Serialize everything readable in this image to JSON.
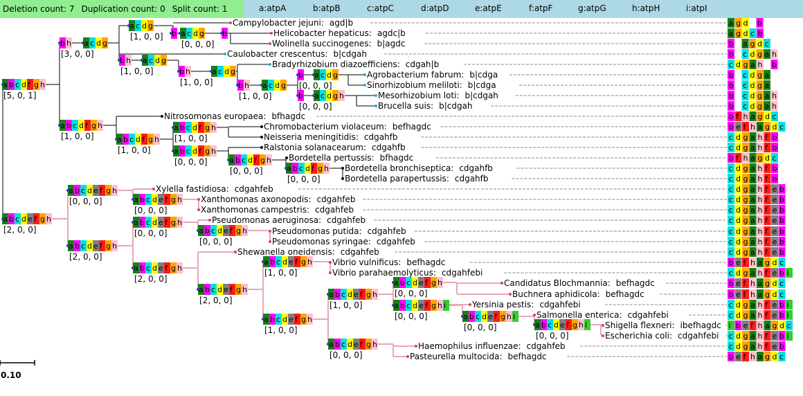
{
  "header": {
    "stats": [
      {
        "label": "Deletion count:",
        "value": "7"
      },
      {
        "label": "Duplication count:",
        "value": "0"
      },
      {
        "label": "Split count:",
        "value": "1"
      }
    ],
    "genes": [
      {
        "key": "a",
        "name": "atpA",
        "color": "#1a7f1a"
      },
      {
        "key": "b",
        "name": "atpB",
        "color": "#ff00ff"
      },
      {
        "key": "c",
        "name": "atpC",
        "color": "#00e0e0"
      },
      {
        "key": "d",
        "name": "atpD",
        "color": "#ffff00"
      },
      {
        "key": "e",
        "name": "atpE",
        "color": "#808080"
      },
      {
        "key": "f",
        "name": "atpF",
        "color": "#ff1a1a"
      },
      {
        "key": "g",
        "name": "atpG",
        "color": "#ffa500"
      },
      {
        "key": "h",
        "name": "atpH",
        "color": "#ffc0cb"
      },
      {
        "key": "i",
        "name": "atpI",
        "color": "#32cd32"
      }
    ]
  },
  "leaves": [
    {
      "name": "Campylobacter jejuni:",
      "order": "agd|b",
      "bar": "agd b"
    },
    {
      "name": "Helicobacter hepaticus:",
      "order": "agdc|b",
      "bar": "agdcb"
    },
    {
      "name": "Wolinella succinogenes:",
      "order": "b|agdc",
      "bar": "b agdc"
    },
    {
      "name": "Caulobacter crescentus:",
      "order": "b|cdgah",
      "bar": "b cdgah"
    },
    {
      "name": "Bradyrhizobium diazoefficiens:",
      "order": "cdgah|b",
      "bar": "cdgah b"
    },
    {
      "name": "Agrobacterium fabrum:",
      "order": "b|cdga",
      "bar": "b cdga"
    },
    {
      "name": "Sinorhizobium meliloti:",
      "order": "b|cdga",
      "bar": "b cdga"
    },
    {
      "name": "Mesorhizobium loti:",
      "order": "b|cdgah",
      "bar": "b cdgah"
    },
    {
      "name": "Brucella suis:",
      "order": "b|cdgah",
      "bar": "b cdgah"
    },
    {
      "name": "Nitrosomonas europaea:",
      "order": "bfhagdc",
      "bar": "bfhagdc"
    },
    {
      "name": "Chromobacterium violaceum:",
      "order": "befhagdc",
      "bar": "befhagdc"
    },
    {
      "name": "Neisseria meningitidis:",
      "order": "cdgahfb",
      "bar": "cdgahfb"
    },
    {
      "name": "Ralstonia solanacearum:",
      "order": "cdgahfb",
      "bar": "cdgahfb"
    },
    {
      "name": "Bordetella pertussis:",
      "order": "bfhagdc",
      "bar": "bfhagdc"
    },
    {
      "name": "Bordetella bronchiseptica:",
      "order": "cdgahfb",
      "bar": "cdgahfb"
    },
    {
      "name": "Bordetella parapertussis:",
      "order": "cdgahfb",
      "bar": "cdgahfb"
    },
    {
      "name": "Xylella fastidiosa:",
      "order": "cdgahfeb",
      "bar": "cdgahfeb"
    },
    {
      "name": "Xanthomonas axonopodis:",
      "order": "cdgahfeb",
      "bar": "cdgahfeb"
    },
    {
      "name": "Xanthomonas campestris:",
      "order": "cdgahfeb",
      "bar": "cdgahfeb"
    },
    {
      "name": "Pseudomonas aeruginosa:",
      "order": "cdgahfeb",
      "bar": "cdgahfeb"
    },
    {
      "name": "Pseudomonas putida:",
      "order": "cdgahfeb",
      "bar": "cdgahfeb"
    },
    {
      "name": "Pseudomonas syringae:",
      "order": "cdgahfeb",
      "bar": "cdgahfeb"
    },
    {
      "name": "Shewanella oneidensis:",
      "order": "cdgahfeb",
      "bar": "cdgahfeb"
    },
    {
      "name": "Vibrio vulnificus:",
      "order": "befhagdc",
      "bar": "befhagdc"
    },
    {
      "name": "Vibrio parahaemolyticus:",
      "order": "cdgahfebi",
      "bar": "cdgahfebi"
    },
    {
      "name": "Candidatus Blochmannia:",
      "order": "befhagdc",
      "bar": "befhagdc"
    },
    {
      "name": "Buchnera aphidicola:",
      "order": "befhagdc",
      "bar": "befhagdc"
    },
    {
      "name": "Yersinia pestis:",
      "order": "cdgahfebi",
      "bar": "cdgahfebi"
    },
    {
      "name": "Salmonella enterica:",
      "order": "cdgahfebi",
      "bar": "cdgahfebi"
    },
    {
      "name": "Shigella flexneri:",
      "order": "ibefhagdc",
      "bar": "ibefhagdc"
    },
    {
      "name": "Escherichia coli:",
      "order": "cdgahfebi",
      "bar": "cdgahfebi"
    },
    {
      "name": "Haemophilus influenzae:",
      "order": "cdgahfeb",
      "bar": "cdgahfeb"
    },
    {
      "name": "Pasteurella multocida:",
      "order": "befhagdc",
      "bar": "befhagdc"
    }
  ],
  "internal_nodes": [
    {
      "id": "root",
      "genes": "abcdfgh",
      "counts": "[5, 0, 1]"
    },
    {
      "id": "n1",
      "genes": "bh",
      "counts": "[3, 0, 0]"
    },
    {
      "id": "n1a",
      "genes": "acdg",
      "counts": ""
    },
    {
      "id": "n2",
      "genes": "acdg",
      "counts": "[1, 0, 0]"
    },
    {
      "id": "n2a",
      "genes": "b",
      "counts": ""
    },
    {
      "id": "n3",
      "genes": "acdg",
      "counts": "[0, 0, 0]"
    },
    {
      "id": "n3a",
      "genes": "b",
      "counts": ""
    },
    {
      "id": "n4",
      "genes": "bh",
      "counts": "[1, 0, 0]"
    },
    {
      "id": "n4a",
      "genes": "acdg",
      "counts": ""
    },
    {
      "id": "n5",
      "genes": "bh",
      "counts": "[1, 0, 0]"
    },
    {
      "id": "n5a",
      "genes": "acdg",
      "counts": ""
    },
    {
      "id": "n6",
      "genes": "bh",
      "counts": "[1, 0, 0]"
    },
    {
      "id": "n6a",
      "genes": "acdg",
      "counts": ""
    },
    {
      "id": "n7",
      "genes": "b",
      "counts": "[0, 0, 0]"
    },
    {
      "id": "n7a",
      "genes": "acdg",
      "counts": ""
    },
    {
      "id": "n8",
      "genes": "b",
      "counts": "[0, 0, 0]"
    },
    {
      "id": "n8a",
      "genes": "acdgh",
      "counts": ""
    },
    {
      "id": "n9",
      "genes": "abcdfgh",
      "counts": "[1, 0, 0]"
    },
    {
      "id": "n10",
      "genes": "abcdfgh",
      "counts": "[1, 0, 0]"
    },
    {
      "id": "n11",
      "genes": "abcdfgh",
      "counts": "[1, 0, 0]"
    },
    {
      "id": "n12",
      "genes": "abcdfgh",
      "counts": "[0, 0, 0]"
    },
    {
      "id": "n13",
      "genes": "abcdfgh",
      "counts": "[0, 0, 0]"
    },
    {
      "id": "n14",
      "genes": "abcdfgh",
      "counts": "[0, 0, 0]"
    },
    {
      "id": "g1",
      "genes": "abcdefgh",
      "counts": "[2, 0, 0]"
    },
    {
      "id": "g2",
      "genes": "abcdefgh",
      "counts": "[0, 0, 0]"
    },
    {
      "id": "g3",
      "genes": "abcdefgh",
      "counts": "[0, 0, 0]"
    },
    {
      "id": "g4",
      "genes": "abcdefgh",
      "counts": "[2, 0, 0]"
    },
    {
      "id": "g5",
      "genes": "abcdefgh",
      "counts": "[0, 0, 0]"
    },
    {
      "id": "g6",
      "genes": "abcdefgh",
      "counts": "[0, 0, 0]"
    },
    {
      "id": "g7",
      "genes": "abcdefgh",
      "counts": "[2, 0, 0]"
    },
    {
      "id": "g8",
      "genes": "abcdefgh",
      "counts": "[2, 0, 0]"
    },
    {
      "id": "g9",
      "genes": "abcdefgh",
      "counts": "[1, 0, 0]"
    },
    {
      "id": "g10",
      "genes": "abcdefgh",
      "counts": "[1, 0, 0]"
    },
    {
      "id": "g11",
      "genes": "abcdefgh",
      "counts": "[1, 0, 0]"
    },
    {
      "id": "g12",
      "genes": "abcdefgh",
      "counts": "[0, 0, 0]"
    },
    {
      "id": "g13",
      "genes": "abcdefghi",
      "counts": "[0, 0, 0]"
    },
    {
      "id": "g14",
      "genes": "abcdefghi",
      "counts": "[0, 0, 0]"
    },
    {
      "id": "g15",
      "genes": "abcdefghi",
      "counts": "[0, 0, 0]"
    },
    {
      "id": "g16",
      "genes": "abcdefgh",
      "counts": "[0, 0, 0]"
    }
  ],
  "scale_label": "0.10"
}
